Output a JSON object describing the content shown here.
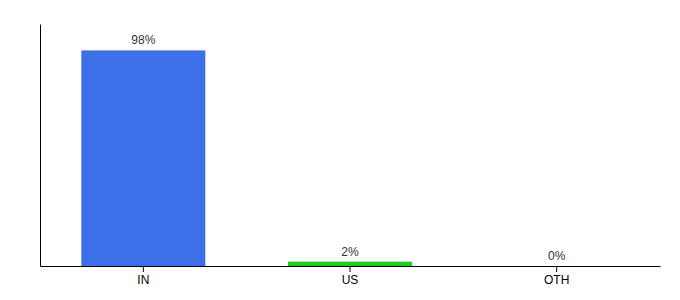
{
  "chart_data": {
    "type": "bar",
    "categories": [
      "IN",
      "US",
      "OTH"
    ],
    "values": [
      98,
      2,
      0
    ],
    "value_labels": [
      "98%",
      "2%",
      "0%"
    ],
    "colors": [
      "#3d6fe8",
      "#22cc22",
      "#3d6fe8"
    ],
    "ylim": [
      0,
      110
    ],
    "data_labels": true,
    "tick_labels": "x"
  }
}
